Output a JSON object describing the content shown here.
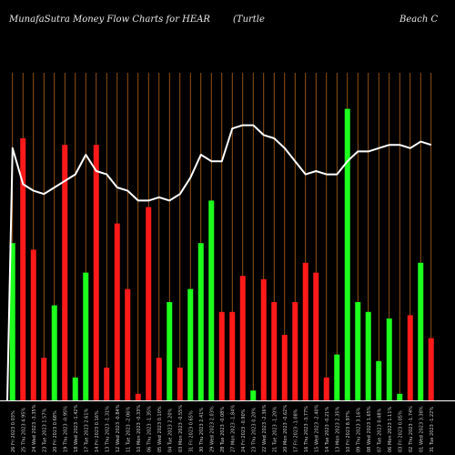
{
  "chart_data": {
    "type": "bar",
    "title_left": "MunafaSutra  Money Flow  Charts for HEAR",
    "title_middle": "(Turtle",
    "title_right": "Beach C",
    "colors": {
      "up": "#1dff1d",
      "down": "#ff1a1a",
      "grid": "#b5651d",
      "line": "#ffffff",
      "background": "#000000"
    },
    "bars": [
      {
        "value": 48,
        "color": "up"
      },
      {
        "value": 80,
        "color": "down"
      },
      {
        "value": 46,
        "color": "down"
      },
      {
        "value": 13,
        "color": "down"
      },
      {
        "value": 29,
        "color": "up"
      },
      {
        "value": 78,
        "color": "down"
      },
      {
        "value": 7,
        "color": "up"
      },
      {
        "value": 39,
        "color": "up"
      },
      {
        "value": 78,
        "color": "down"
      },
      {
        "value": 10,
        "color": "down"
      },
      {
        "value": 54,
        "color": "down"
      },
      {
        "value": 34,
        "color": "down"
      },
      {
        "value": 2,
        "color": "down"
      },
      {
        "value": 59,
        "color": "down"
      },
      {
        "value": 13,
        "color": "down"
      },
      {
        "value": 30,
        "color": "up"
      },
      {
        "value": 10,
        "color": "down"
      },
      {
        "value": 34,
        "color": "up"
      },
      {
        "value": 48,
        "color": "up"
      },
      {
        "value": 61,
        "color": "up"
      },
      {
        "value": 27,
        "color": "down"
      },
      {
        "value": 27,
        "color": "down"
      },
      {
        "value": 38,
        "color": "down"
      },
      {
        "value": 3,
        "color": "up"
      },
      {
        "value": 37,
        "color": "down"
      },
      {
        "value": 30,
        "color": "down"
      },
      {
        "value": 20,
        "color": "down"
      },
      {
        "value": 30,
        "color": "down"
      },
      {
        "value": 42,
        "color": "down"
      },
      {
        "value": 39,
        "color": "down"
      },
      {
        "value": 7,
        "color": "down"
      },
      {
        "value": 14,
        "color": "up"
      },
      {
        "value": 89,
        "color": "up"
      },
      {
        "value": 30,
        "color": "up"
      },
      {
        "value": 27,
        "color": "up"
      },
      {
        "value": 12,
        "color": "up"
      },
      {
        "value": 25,
        "color": "up"
      },
      {
        "value": 2,
        "color": "up"
      },
      {
        "value": 26,
        "color": "down"
      },
      {
        "value": 42,
        "color": "up"
      },
      {
        "value": 19,
        "color": "down"
      }
    ],
    "line": [
      77,
      66,
      64,
      63,
      65,
      67,
      69,
      75,
      70,
      69,
      65,
      64,
      61,
      61,
      62,
      61,
      63,
      68,
      75,
      73,
      73,
      83,
      84,
      84,
      81,
      80,
      77,
      73,
      69,
      70,
      69,
      69,
      73,
      76,
      76,
      77,
      78,
      78,
      77,
      79,
      78
    ],
    "line_start": 0,
    "ylim": [
      0,
      100
    ],
    "x_labels": [
      "26 Fri 2023 0.03%",
      "25 Thu 2023 4.95%",
      "24 Wed 2023 -3.35%",
      "23 Tue 2023 1.57%",
      "20 Fri 2023 0.68%",
      "19 Thu 2023 -0.95%",
      "18 Wed 2023 -1.42%",
      "17 Tue 2023 2.61%",
      "14 Fri 2023 0.16%",
      "13 Thu 2023 -1.31%",
      "12 Wed 2023 -0.84%",
      "11 Tue 2023 -2.06%",
      "10 Mon 2023 -0.33%",
      "06 Thu 2023 -1.35%",
      "05 Wed 2023 0.10%",
      "04 Tue 2023 2.20%",
      "03 Mon 2023 -0.55%",
      "31 Fri 2023 0.65%",
      "30 Thu 2023 2.41%",
      "29 Wed 2023 2.03%",
      "28 Tue 2023 -0.08%",
      "27 Mon 2023 -1.84%",
      "24 Fri 2023 -0.90%",
      "23 Thu 2023 0.20%",
      "22 Wed 2023 -2.36%",
      "21 Tue 2023 -1.20%",
      "20 Mon 2023 -0.62%",
      "17 Fri 2023 -1.08%",
      "16 Thu 2023 -3.77%",
      "15 Wed 2023 -2.40%",
      "14 Tue 2023 -0.21%",
      "13 Mon 2023 2.35%",
      "10 Fri 2023 8.97%",
      "09 Thu 2023 3.16%",
      "08 Wed 2023 1.65%",
      "07 Tue 2023 0.48%",
      "06 Mon 2023 1.11%",
      "03 Fri 2023 0.05%",
      "02 Thu 2023 -1.74%",
      "01 Wed 2023 3.38%",
      "31 Tue 2023 -1.22%"
    ]
  }
}
